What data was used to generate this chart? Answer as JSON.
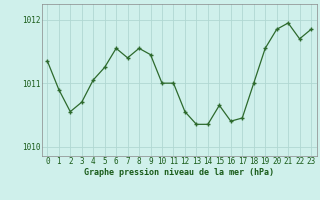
{
  "x": [
    0,
    1,
    2,
    3,
    4,
    5,
    6,
    7,
    8,
    9,
    10,
    11,
    12,
    13,
    14,
    15,
    16,
    17,
    18,
    19,
    20,
    21,
    22,
    23
  ],
  "y": [
    1011.35,
    1010.9,
    1010.55,
    1010.7,
    1011.05,
    1011.25,
    1011.55,
    1011.4,
    1011.55,
    1011.45,
    1011.0,
    1011.0,
    1010.55,
    1010.35,
    1010.35,
    1010.65,
    1010.4,
    1010.45,
    1011.0,
    1011.55,
    1011.85,
    1011.95,
    1011.7,
    1011.85
  ],
  "line_color": "#2d6a2d",
  "marker": "+",
  "bg_color": "#cff0eb",
  "grid_color": "#b0d8d2",
  "xlabel": "Graphe pression niveau de la mer (hPa)",
  "ylabel_ticks": [
    1010,
    1011,
    1012
  ],
  "xlim": [
    -0.5,
    23.5
  ],
  "ylim": [
    1009.85,
    1012.25
  ],
  "spine_color": "#888888",
  "text_color": "#1a5c1a",
  "xlabel_fontsize": 6.0,
  "tick_fontsize": 5.5
}
